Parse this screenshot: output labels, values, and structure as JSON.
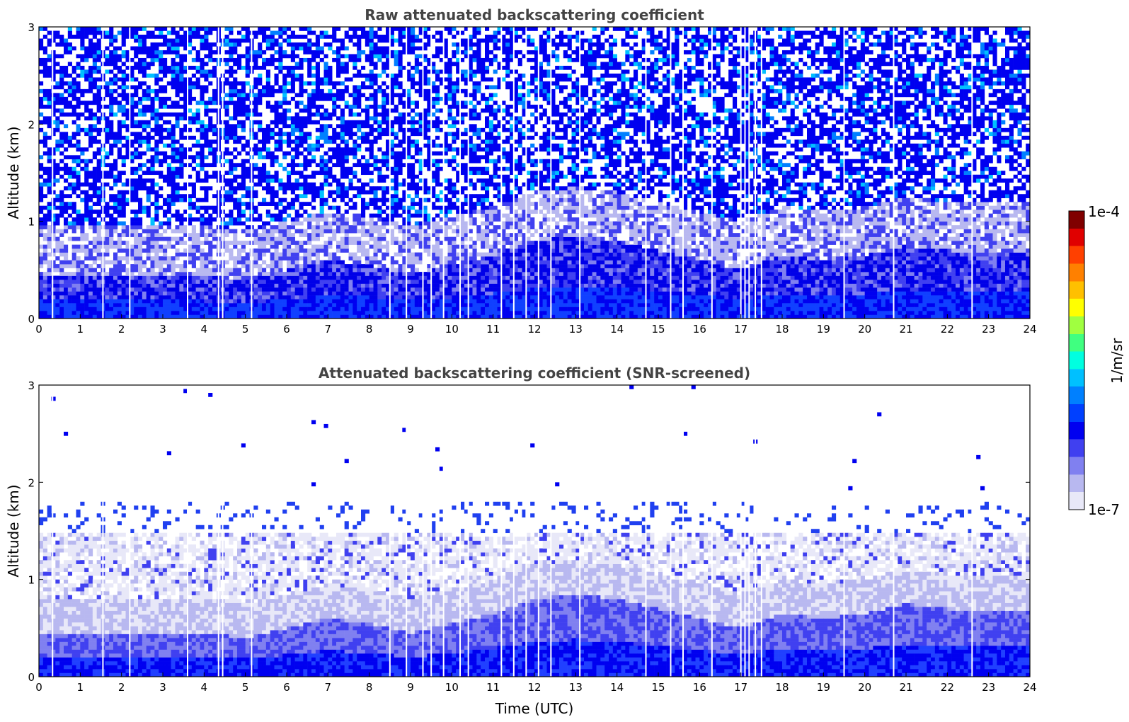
{
  "chart_data": [
    {
      "type": "heatmap",
      "title": "Raw attenuated backscattering coefficient",
      "xlabel": "",
      "ylabel": "Altitude (km)",
      "xlim": [
        0,
        24
      ],
      "ylim": [
        0,
        3
      ],
      "x_ticks": [
        "0",
        "1",
        "2",
        "3",
        "4",
        "5",
        "6",
        "7",
        "8",
        "9",
        "10",
        "11",
        "12",
        "13",
        "14",
        "15",
        "16",
        "17",
        "18",
        "19",
        "20",
        "21",
        "22",
        "23",
        "24"
      ],
      "y_ticks": [
        "0",
        "1",
        "2",
        "3"
      ],
      "boundary_layer_top_km": {
        "x": [
          0,
          1,
          2,
          3,
          4,
          5,
          6,
          7,
          8,
          9,
          10,
          11,
          12,
          13,
          14,
          15,
          16,
          17,
          18,
          19,
          20,
          21,
          22,
          23,
          24
        ],
        "y": [
          0.45,
          0.45,
          0.45,
          0.45,
          0.45,
          0.4,
          0.5,
          0.6,
          0.55,
          0.45,
          0.55,
          0.65,
          0.8,
          0.85,
          0.8,
          0.7,
          0.6,
          0.5,
          0.65,
          0.6,
          0.65,
          0.75,
          0.7,
          0.7,
          0.7
        ]
      },
      "missing_profile_times_utc": [
        0.33,
        1.55,
        2.2,
        3.6,
        4.35,
        4.45,
        5.15,
        8.5,
        8.9,
        9.3,
        9.5,
        9.8,
        10.2,
        10.4,
        11.2,
        11.5,
        11.8,
        12.1,
        12.4,
        13.1,
        14.7,
        15.3,
        15.6,
        16.3,
        17.0,
        17.1,
        17.2,
        17.35,
        17.5,
        19.5,
        20.7,
        22.6
      ]
    },
    {
      "type": "heatmap",
      "title": "Attenuated backscattering coefficient (SNR-screened)",
      "xlabel": "Time (UTC)",
      "ylabel": "Altitude (km)",
      "xlim": [
        0,
        24
      ],
      "ylim": [
        0,
        3
      ],
      "x_ticks": [
        "0",
        "1",
        "2",
        "3",
        "4",
        "5",
        "6",
        "7",
        "8",
        "9",
        "10",
        "11",
        "12",
        "13",
        "14",
        "15",
        "16",
        "17",
        "18",
        "19",
        "20",
        "21",
        "22",
        "23",
        "24"
      ],
      "y_ticks": [
        "0",
        "1",
        "2",
        "3"
      ],
      "screened_top_km": 1.8,
      "boundary_layer_top_km": {
        "x": [
          0,
          1,
          2,
          3,
          4,
          5,
          6,
          7,
          8,
          9,
          10,
          11,
          12,
          13,
          14,
          15,
          16,
          17,
          18,
          19,
          20,
          21,
          22,
          23,
          24
        ],
        "y": [
          0.45,
          0.45,
          0.45,
          0.45,
          0.45,
          0.4,
          0.5,
          0.6,
          0.55,
          0.45,
          0.55,
          0.65,
          0.8,
          0.85,
          0.8,
          0.7,
          0.6,
          0.5,
          0.65,
          0.6,
          0.65,
          0.75,
          0.7,
          0.7,
          0.7
        ]
      },
      "missing_profile_times_utc": [
        0.33,
        1.55,
        2.2,
        3.6,
        4.35,
        4.45,
        5.15,
        8.5,
        8.9,
        9.3,
        9.5,
        9.8,
        10.2,
        10.4,
        11.2,
        11.5,
        11.8,
        12.1,
        12.4,
        13.1,
        14.7,
        15.3,
        15.6,
        16.3,
        17.0,
        17.1,
        17.2,
        17.35,
        17.5,
        19.5,
        20.7,
        22.6
      ]
    }
  ],
  "colorbar": {
    "label": "1/m/sr",
    "max_label": "1e-4",
    "min_label": "1e-7",
    "scale": "log",
    "range": [
      1e-07,
      0.0001
    ],
    "colormap": "jet",
    "colors": [
      "#e8e8f8",
      "#b8b8f0",
      "#8080f0",
      "#4040f0",
      "#0000f0",
      "#0040ff",
      "#0080ff",
      "#00c0ff",
      "#00ffe0",
      "#40ff80",
      "#a0ff40",
      "#ffff00",
      "#ffc000",
      "#ff8000",
      "#ff4000",
      "#e00000",
      "#800000"
    ]
  }
}
